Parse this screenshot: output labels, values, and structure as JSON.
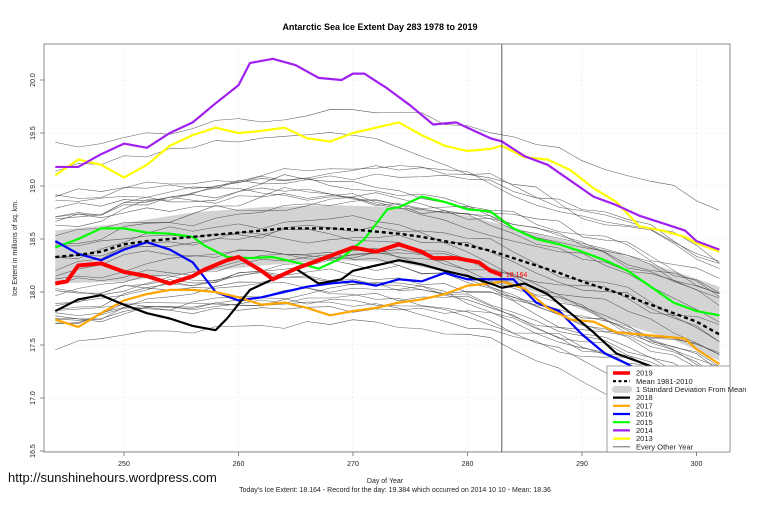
{
  "chart_data": {
    "type": "line",
    "title": "Antarctic Sea Ice Extent Day 283 1978 to 2019",
    "xlabel": "Day of Year",
    "ylabel": "Ice Extent in millions of sq. km.",
    "xlim": [
      243.6,
      303.5
    ],
    "ylim": [
      16.45,
      20.35
    ],
    "xticks": [
      250,
      260,
      270,
      280,
      290,
      300
    ],
    "yticks": [
      "16.5",
      "17.0",
      "17.5",
      "18.0",
      "18.5",
      "19.0",
      "19.5",
      "20.0"
    ],
    "grid": true,
    "current_day": 283,
    "current_value_label": "18.164",
    "legend_position": "bottom-right",
    "legend": [
      {
        "label": "2019",
        "color": "#ff0000",
        "kind": "thick"
      },
      {
        "label": "Mean 1981-2010",
        "color": "#000000",
        "kind": "dashed"
      },
      {
        "label": "1 Standard Deviation From Mean",
        "color": "#d3d3d3",
        "kind": "band"
      },
      {
        "label": "2018",
        "color": "#000000",
        "kind": "line"
      },
      {
        "label": "2017",
        "color": "#ffa500",
        "kind": "line"
      },
      {
        "label": "2016",
        "color": "#0000ff",
        "kind": "line"
      },
      {
        "label": "2015",
        "color": "#00ff00",
        "kind": "line"
      },
      {
        "label": "2014",
        "color": "#a020f0",
        "kind": "line"
      },
      {
        "label": "2013",
        "color": "#ffff00",
        "kind": "line"
      },
      {
        "label": "Every Other Year",
        "color": "#555555",
        "kind": "thin"
      }
    ],
    "series": [
      {
        "name": "2019",
        "color": "#ff0000",
        "x": [
          244,
          245,
          246,
          248,
          250,
          252,
          254,
          256,
          257,
          259,
          260,
          262,
          263,
          265,
          267,
          268,
          270,
          272,
          274,
          276,
          277,
          279,
          281,
          282,
          283
        ],
        "values": [
          18.08,
          18.1,
          18.25,
          18.27,
          18.19,
          18.15,
          18.08,
          18.15,
          18.21,
          18.3,
          18.33,
          18.2,
          18.12,
          18.22,
          18.3,
          18.34,
          18.42,
          18.38,
          18.45,
          18.38,
          18.32,
          18.32,
          18.28,
          18.2,
          18.16
        ]
      },
      {
        "name": "2018",
        "color": "#000000",
        "x": [
          244,
          246,
          248,
          250,
          252,
          254,
          256,
          258,
          259,
          261,
          263,
          265,
          267,
          269,
          270,
          272,
          274,
          276,
          278,
          280,
          282,
          283,
          285,
          287,
          289,
          291,
          293,
          295,
          297,
          299,
          300,
          302
        ],
        "values": [
          17.82,
          17.93,
          17.97,
          17.88,
          17.8,
          17.75,
          17.68,
          17.64,
          17.75,
          18.02,
          18.12,
          18.22,
          18.08,
          18.12,
          18.2,
          18.25,
          18.3,
          18.26,
          18.2,
          18.15,
          18.08,
          18.04,
          18.08,
          17.98,
          17.8,
          17.62,
          17.42,
          17.34,
          17.26,
          17.2,
          17.18,
          17.05
        ]
      },
      {
        "name": "2017",
        "color": "#ffa500",
        "x": [
          244,
          246,
          248,
          250,
          252,
          254,
          256,
          258,
          260,
          262,
          264,
          266,
          268,
          270,
          272,
          274,
          276,
          278,
          280,
          282,
          283,
          285,
          287,
          289,
          291,
          293,
          295,
          297,
          299,
          300,
          302
        ],
        "values": [
          17.74,
          17.67,
          17.8,
          17.92,
          17.98,
          18.02,
          18.02,
          18.0,
          17.95,
          17.88,
          17.9,
          17.85,
          17.78,
          17.82,
          17.85,
          17.9,
          17.93,
          17.98,
          18.06,
          18.08,
          18.1,
          18.03,
          17.85,
          17.74,
          17.72,
          17.62,
          17.6,
          17.58,
          17.56,
          17.46,
          17.32
        ]
      },
      {
        "name": "2016",
        "color": "#0000ff",
        "x": [
          244,
          246,
          248,
          250,
          252,
          254,
          256,
          258,
          260,
          262,
          264,
          266,
          268,
          270,
          272,
          274,
          276,
          278,
          280,
          282,
          284,
          286,
          288,
          290,
          292,
          294,
          296,
          298,
          300,
          302
        ],
        "values": [
          18.48,
          18.36,
          18.3,
          18.4,
          18.47,
          18.4,
          18.28,
          18.0,
          17.92,
          17.95,
          18.0,
          18.05,
          18.08,
          18.1,
          18.06,
          18.12,
          18.1,
          18.18,
          18.12,
          18.12,
          18.12,
          17.9,
          17.82,
          17.6,
          17.42,
          17.32,
          17.18,
          17.05,
          16.9,
          16.72
        ]
      },
      {
        "name": "2015",
        "color": "#00ff00",
        "x": [
          244,
          246,
          248,
          250,
          252,
          254,
          256,
          257,
          259,
          261,
          263,
          265,
          267,
          269,
          271,
          273,
          274,
          276,
          278,
          280,
          282,
          284,
          286,
          288,
          290,
          292,
          294,
          296,
          298,
          300,
          302
        ],
        "values": [
          18.42,
          18.5,
          18.6,
          18.6,
          18.56,
          18.55,
          18.52,
          18.44,
          18.33,
          18.32,
          18.33,
          18.28,
          18.22,
          18.32,
          18.5,
          18.78,
          18.8,
          18.9,
          18.85,
          18.78,
          18.76,
          18.6,
          18.5,
          18.45,
          18.38,
          18.3,
          18.2,
          18.05,
          17.9,
          17.82,
          17.78
        ]
      },
      {
        "name": "2014",
        "color": "#a020f0",
        "x": [
          244,
          246,
          248,
          250,
          252,
          254,
          256,
          258,
          260,
          261,
          262,
          263,
          265,
          267,
          269,
          270,
          271,
          273,
          275,
          277,
          279,
          280,
          282,
          283,
          285,
          287,
          289,
          291,
          293,
          295,
          297,
          299,
          300,
          302
        ],
        "values": [
          19.18,
          19.18,
          19.3,
          19.4,
          19.36,
          19.5,
          19.6,
          19.78,
          19.95,
          20.16,
          20.18,
          20.2,
          20.14,
          20.02,
          20.0,
          20.06,
          20.06,
          19.92,
          19.76,
          19.58,
          19.6,
          19.55,
          19.45,
          19.42,
          19.28,
          19.2,
          19.05,
          18.9,
          18.82,
          18.72,
          18.65,
          18.58,
          18.48,
          18.4
        ]
      },
      {
        "name": "2013",
        "color": "#ffff00",
        "x": [
          244,
          246,
          248,
          250,
          252,
          254,
          256,
          258,
          260,
          262,
          264,
          266,
          268,
          270,
          272,
          274,
          276,
          278,
          280,
          282,
          283,
          285,
          287,
          289,
          291,
          293,
          295,
          297,
          299,
          300,
          302
        ],
        "values": [
          19.1,
          19.25,
          19.2,
          19.08,
          19.2,
          19.38,
          19.48,
          19.55,
          19.5,
          19.52,
          19.55,
          19.45,
          19.42,
          19.5,
          19.55,
          19.6,
          19.48,
          19.38,
          19.33,
          19.35,
          19.38,
          19.27,
          19.25,
          19.15,
          18.98,
          18.85,
          18.62,
          18.58,
          18.52,
          18.46,
          18.38
        ]
      },
      {
        "name": "Mean 1981-2010",
        "color": "#000000",
        "x": [
          244,
          246,
          248,
          250,
          252,
          254,
          256,
          258,
          260,
          262,
          264,
          266,
          268,
          270,
          272,
          274,
          276,
          278,
          280,
          282,
          284,
          286,
          288,
          290,
          292,
          294,
          296,
          298,
          300,
          302
        ],
        "values": [
          18.33,
          18.35,
          18.38,
          18.45,
          18.48,
          18.5,
          18.52,
          18.54,
          18.56,
          18.58,
          18.6,
          18.6,
          18.6,
          18.59,
          18.57,
          18.55,
          18.52,
          18.48,
          18.44,
          18.39,
          18.32,
          18.25,
          18.18,
          18.1,
          18.03,
          17.96,
          17.88,
          17.8,
          17.72,
          17.6
        ]
      }
    ],
    "std_band": {
      "x": [
        244,
        250,
        256,
        262,
        268,
        274,
        280,
        286,
        292,
        298,
        302
      ],
      "upper": [
        18.58,
        18.65,
        18.75,
        18.8,
        18.82,
        18.8,
        18.72,
        18.55,
        18.4,
        18.2,
        18.05
      ],
      "lower": [
        18.08,
        18.1,
        18.18,
        18.25,
        18.3,
        18.28,
        18.15,
        18.0,
        17.75,
        17.55,
        17.35
      ]
    }
  },
  "footer": {
    "website": "http://sunshinehours.wordpress.com",
    "summary": "Today's Ice Extent: 18.164  - Record for the day: 19.384 which occurred on 2014 10 10  - Mean: 18.36"
  }
}
